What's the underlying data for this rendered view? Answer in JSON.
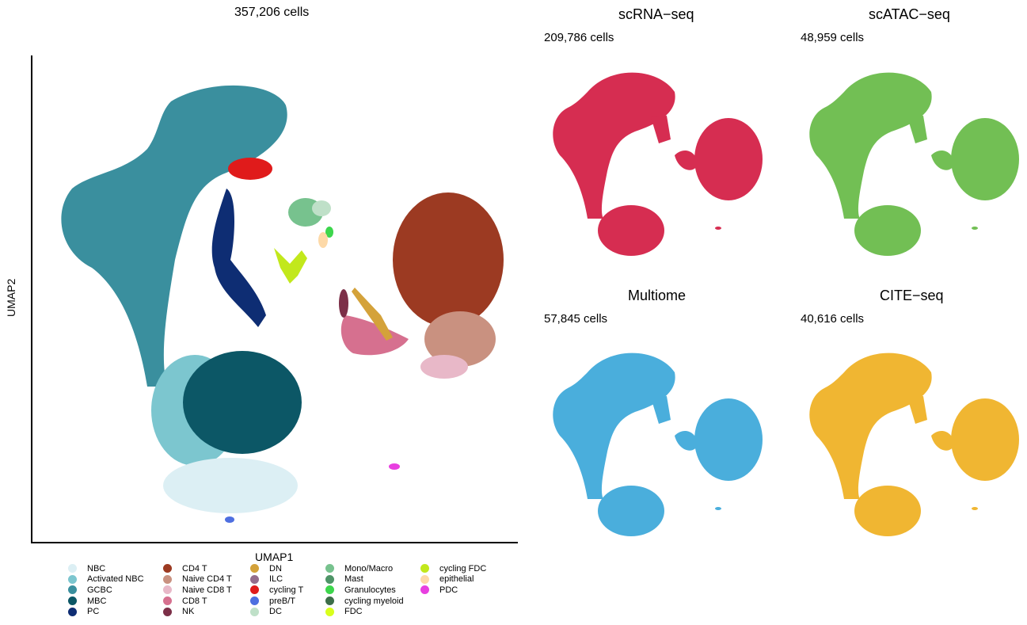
{
  "main": {
    "title": "357,206 cells",
    "xlabel": "UMAP1",
    "ylabel": "UMAP2"
  },
  "panels": [
    {
      "title": "scRNA−seq",
      "count": "209,786 cells",
      "color": "#d62d51"
    },
    {
      "title": "scATAC−seq",
      "count": "48,959 cells",
      "color": "#72bf54"
    },
    {
      "title": "Multiome",
      "count": "57,845 cells",
      "color": "#4aaedc"
    },
    {
      "title": "CITE−seq",
      "count": "40,616 cells",
      "color": "#f0b632"
    }
  ],
  "legend": {
    "columns": [
      [
        {
          "label": "NBC",
          "color": "#dceff4"
        },
        {
          "label": "Activated NBC",
          "color": "#7cc6cf"
        },
        {
          "label": "GCBC",
          "color": "#3a8f9e"
        },
        {
          "label": "MBC",
          "color": "#0c5766"
        },
        {
          "label": "PC",
          "color": "#0e2d73"
        }
      ],
      [
        {
          "label": "CD4 T",
          "color": "#9c3a22"
        },
        {
          "label": "Naive CD4 T",
          "color": "#c99180"
        },
        {
          "label": "Naive CD8 T",
          "color": "#e8b8c8"
        },
        {
          "label": "CD8 T",
          "color": "#d6708f"
        },
        {
          "label": "NK",
          "color": "#7c2f48"
        }
      ],
      [
        {
          "label": "DN",
          "color": "#d4a23a"
        },
        {
          "label": "ILC",
          "color": "#946d8c"
        },
        {
          "label": "cycling T",
          "color": "#e01b1b"
        },
        {
          "label": "preB/T",
          "color": "#4e6fe0"
        },
        {
          "label": "DC",
          "color": "#bfe0c8"
        }
      ],
      [
        {
          "label": "Mono/Macro",
          "color": "#77c28e"
        },
        {
          "label": "Mast",
          "color": "#4e9467"
        },
        {
          "label": "Granulocytes",
          "color": "#3dd64c"
        },
        {
          "label": "cycling myeloid",
          "color": "#3d6e49"
        },
        {
          "label": "FDC",
          "color": "#d9ff1c"
        }
      ],
      [
        {
          "label": "cycling FDC",
          "color": "#c2e81c"
        },
        {
          "label": "epithelial",
          "color": "#fdd9a8"
        },
        {
          "label": "PDC",
          "color": "#e83fe0"
        }
      ]
    ]
  },
  "chart_data": [
    {
      "type": "scatter",
      "title": "357,206 cells",
      "xlabel": "UMAP1",
      "ylabel": "UMAP2",
      "colored_by": "cell type",
      "series": [
        {
          "name": "GCBC",
          "color": "#3a8f9e",
          "centroid": [
            -5.0,
            5.0
          ]
        },
        {
          "name": "MBC",
          "color": "#0c5766",
          "centroid": [
            -3.0,
            -4.5
          ]
        },
        {
          "name": "Activated NBC",
          "color": "#7cc6cf",
          "centroid": [
            -4.5,
            -5.5
          ]
        },
        {
          "name": "NBC",
          "color": "#dceff4",
          "centroid": [
            -2.5,
            -7.5
          ]
        },
        {
          "name": "PC",
          "color": "#0e2d73",
          "centroid": [
            -2.0,
            1.5
          ]
        },
        {
          "name": "CD4 T",
          "color": "#9c3a22",
          "centroid": [
            7.5,
            1.8
          ]
        },
        {
          "name": "Naive CD4 T",
          "color": "#c99180",
          "centroid": [
            8.0,
            -0.5
          ]
        },
        {
          "name": "Naive CD8 T",
          "color": "#e8b8c8",
          "centroid": [
            7.5,
            -1.5
          ]
        },
        {
          "name": "CD8 T",
          "color": "#d6708f",
          "centroid": [
            4.5,
            -0.8
          ]
        },
        {
          "name": "cycling T",
          "color": "#e01b1b",
          "centroid": [
            -1.5,
            6.0
          ]
        },
        {
          "name": "Mono/Macro",
          "color": "#77c28e",
          "centroid": [
            2.0,
            3.5
          ]
        },
        {
          "name": "cycling FDC",
          "color": "#c2e81c",
          "centroid": [
            1.6,
            1.7
          ]
        },
        {
          "name": "PDC",
          "color": "#e83fe0",
          "centroid": [
            5.0,
            -8.0
          ]
        }
      ]
    },
    {
      "type": "scatter",
      "title": "scRNA−seq",
      "subtitle": "209,786 cells",
      "series": [
        {
          "name": "scRNA−seq",
          "color": "#d62d51"
        }
      ]
    },
    {
      "type": "scatter",
      "title": "scATAC−seq",
      "subtitle": "48,959 cells",
      "series": [
        {
          "name": "scATAC−seq",
          "color": "#72bf54"
        }
      ]
    },
    {
      "type": "scatter",
      "title": "Multiome",
      "subtitle": "57,845 cells",
      "series": [
        {
          "name": "Multiome",
          "color": "#4aaedc"
        }
      ]
    },
    {
      "type": "scatter",
      "title": "CITE−seq",
      "subtitle": "40,616 cells",
      "series": [
        {
          "name": "CITE−seq",
          "color": "#f0b632"
        }
      ]
    }
  ]
}
